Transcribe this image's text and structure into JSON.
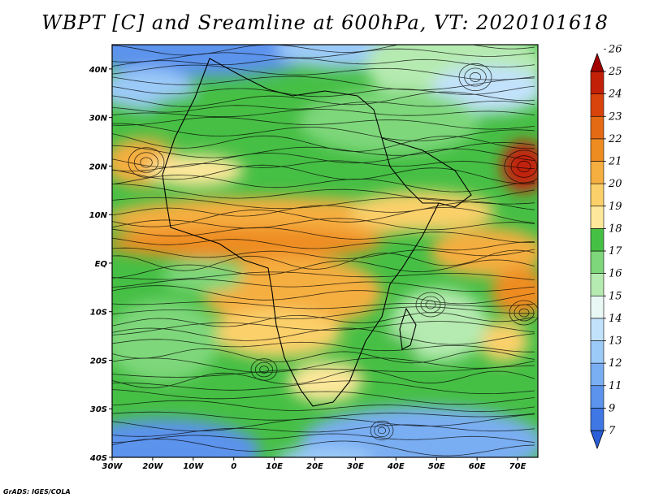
{
  "title": "WBPT [C] and Sreamline at 600hPa, VT: 2020101618",
  "credit": "GrADS: IGES/COLA",
  "map": {
    "lon_range": [
      -30,
      75
    ],
    "lat_range": [
      -40,
      45
    ],
    "lon_ticks": [
      {
        "value": -30,
        "label": "30W"
      },
      {
        "value": -20,
        "label": "20W"
      },
      {
        "value": -10,
        "label": "10W"
      },
      {
        "value": 0,
        "label": "0"
      },
      {
        "value": 10,
        "label": "10E"
      },
      {
        "value": 20,
        "label": "20E"
      },
      {
        "value": 30,
        "label": "30E"
      },
      {
        "value": 40,
        "label": "40E"
      },
      {
        "value": 50,
        "label": "50E"
      },
      {
        "value": 60,
        "label": "60E"
      },
      {
        "value": 70,
        "label": "70E"
      }
    ],
    "lat_ticks": [
      {
        "value": 40,
        "label": "40N"
      },
      {
        "value": 30,
        "label": "30N"
      },
      {
        "value": 20,
        "label": "20N"
      },
      {
        "value": 10,
        "label": "10N"
      },
      {
        "value": 0,
        "label": "EQ"
      },
      {
        "value": -10,
        "label": "10S"
      },
      {
        "value": -20,
        "label": "20S"
      },
      {
        "value": -30,
        "label": "30S"
      },
      {
        "value": -40,
        "label": "40S"
      }
    ]
  },
  "colorbar": {
    "levels": [
      "7",
      "9",
      "11",
      "12",
      "13",
      "14",
      "15",
      "16",
      "17",
      "18",
      "19",
      "20",
      "21",
      "22",
      "23",
      "24",
      "25",
      "26"
    ],
    "colors": [
      "#2a5fd8",
      "#3f78e4",
      "#5c93ec",
      "#7aaef2",
      "#9ccaf8",
      "#c2e2fb",
      "#e9f8f4",
      "#b5eab0",
      "#7ed77a",
      "#46bf45",
      "#fde79a",
      "#fbd06a",
      "#f5ae40",
      "#ee8c22",
      "#e46a14",
      "#d8440c",
      "#c22108",
      "#a30000"
    ]
  }
}
